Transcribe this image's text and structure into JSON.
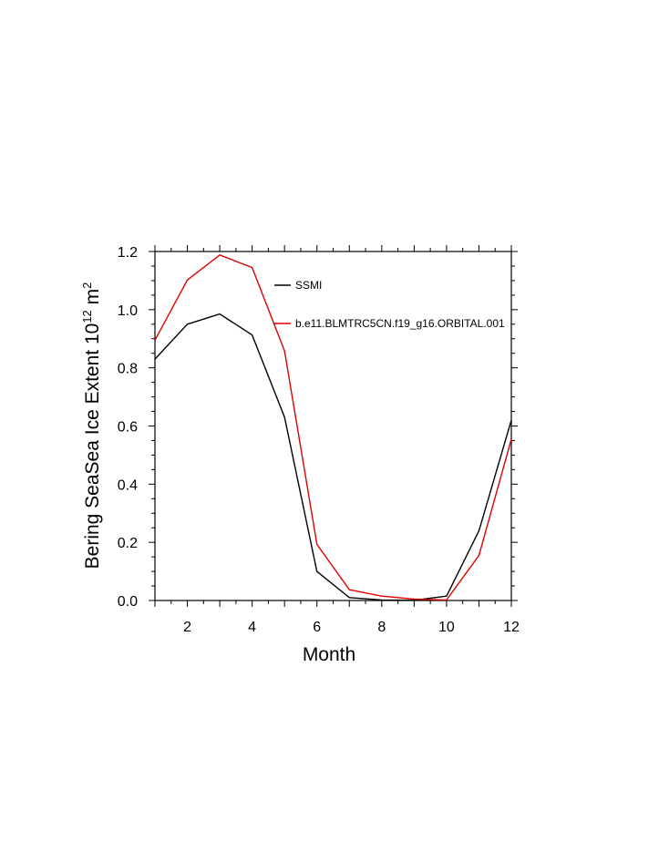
{
  "chart_data": {
    "type": "line",
    "xlabel": "Month",
    "ylabel": "Bering SeaSea Ice Extent 10",
    "ylabel_exponent": "12",
    "ylabel_unit": " m",
    "ylabel_unit_exponent": "2",
    "xlim": [
      1,
      12
    ],
    "ylim": [
      0.0,
      1.2
    ],
    "xticks": [
      2,
      4,
      6,
      8,
      10,
      12
    ],
    "yticks": [
      0.0,
      0.2,
      0.4,
      0.6,
      0.8,
      1.0,
      1.2
    ],
    "yticks_labels": [
      "0.0",
      "0.2",
      "0.4",
      "0.6",
      "0.8",
      "1.0",
      "1.2"
    ],
    "grid": false,
    "legend": "top-right",
    "x": [
      1,
      2,
      3,
      4,
      5,
      6,
      7,
      8,
      9,
      10,
      11,
      12
    ],
    "series": [
      {
        "name": "SSMI",
        "color": "#000000",
        "values": [
          0.83,
          0.95,
          0.985,
          0.913,
          0.63,
          0.1,
          0.01,
          0.002,
          0.001,
          0.015,
          0.24,
          0.62
        ]
      },
      {
        "name": "b.e11.BLMTRC5CN.f19_g16.ORBITAL.001",
        "color": "#e00000",
        "values": [
          0.895,
          1.102,
          1.188,
          1.145,
          0.858,
          0.193,
          0.037,
          0.015,
          0.005,
          0.002,
          0.155,
          0.555
        ]
      }
    ]
  }
}
